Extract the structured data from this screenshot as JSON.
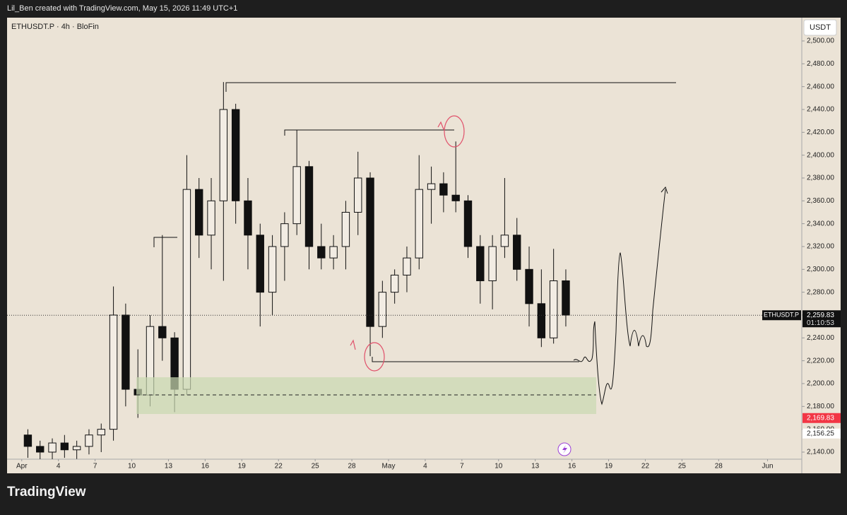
{
  "header": {
    "credit": "Lil_Ben created with TradingView.com, May 15, 2026 11:49 UTC+1"
  },
  "footer": {
    "brand": "TradingView"
  },
  "chart_data": {
    "type": "candlestick",
    "title": "ETHUSDT.P · 4h · BloFin",
    "currency": "USDT",
    "x": [
      0.5,
      1.5,
      2.5,
      3.5,
      4.5,
      5.5,
      6.5,
      7.5,
      8.5,
      9.5,
      10.5,
      11.5,
      12.5,
      13.5,
      14.5,
      15.5,
      16.5,
      17.5,
      18.5,
      19.5,
      20.5,
      21.5,
      22.5,
      23.5,
      24.5,
      25.5,
      26.5,
      27.5,
      28.5,
      29.5,
      30.5,
      31.5,
      32.5,
      33.5,
      34.5,
      35.5,
      36.5,
      37.5,
      38.5,
      39.5,
      40.5,
      41.5,
      42.5,
      43.5,
      44.5
    ],
    "open": [
      2155,
      2145,
      2140,
      2148,
      2142,
      2145,
      2155,
      2160,
      2260,
      2195,
      2190,
      2250,
      2240,
      2195,
      2370,
      2330,
      2360,
      2440,
      2360,
      2330,
      2280,
      2320,
      2340,
      2390,
      2320,
      2310,
      2320,
      2350,
      2380,
      2250,
      2280,
      2295,
      2310,
      2370,
      2375,
      2365,
      2360,
      2320,
      2290,
      2320,
      2330,
      2300,
      2270,
      2240,
      2290
    ],
    "high": [
      2160,
      2150,
      2152,
      2155,
      2150,
      2160,
      2165,
      2285,
      2270,
      2230,
      2260,
      2330,
      2245,
      2400,
      2380,
      2380,
      2464,
      2445,
      2380,
      2340,
      2330,
      2350,
      2422,
      2395,
      2340,
      2330,
      2360,
      2403,
      2385,
      2290,
      2300,
      2320,
      2400,
      2390,
      2385,
      2412,
      2365,
      2330,
      2330,
      2380,
      2345,
      2320,
      2300,
      2318,
      2300
    ],
    "low": [
      2135,
      2130,
      2132,
      2135,
      2134,
      2138,
      2140,
      2150,
      2180,
      2170,
      2180,
      2220,
      2175,
      2190,
      2310,
      2300,
      2290,
      2340,
      2300,
      2250,
      2260,
      2290,
      2330,
      2300,
      2300,
      2300,
      2300,
      2330,
      2224,
      2240,
      2270,
      2280,
      2300,
      2340,
      2350,
      2350,
      2310,
      2270,
      2265,
      2310,
      2290,
      2250,
      2232,
      2235,
      2250
    ],
    "close": [
      2145,
      2140,
      2148,
      2142,
      2145,
      2155,
      2160,
      2260,
      2195,
      2190,
      2250,
      2240,
      2195,
      2370,
      2330,
      2360,
      2440,
      2360,
      2330,
      2280,
      2320,
      2340,
      2390,
      2320,
      2310,
      2320,
      2350,
      2380,
      2250,
      2280,
      2295,
      2310,
      2370,
      2375,
      2365,
      2360,
      2320,
      2290,
      2320,
      2330,
      2300,
      2270,
      2240,
      2290,
      2260
    ],
    "up_color": "#f2ece3",
    "down_color": "#111111",
    "wick_color": "#111111",
    "xlim": [
      -1.2,
      63.8
    ],
    "xticks": [
      {
        "value": 0,
        "label": "Apr"
      },
      {
        "value": 3,
        "label": "4"
      },
      {
        "value": 6,
        "label": "7"
      },
      {
        "value": 9,
        "label": "10"
      },
      {
        "value": 12,
        "label": "13"
      },
      {
        "value": 15,
        "label": "16"
      },
      {
        "value": 18,
        "label": "19"
      },
      {
        "value": 21,
        "label": "22"
      },
      {
        "value": 24,
        "label": "25"
      },
      {
        "value": 27,
        "label": "28"
      },
      {
        "value": 30,
        "label": "May"
      },
      {
        "value": 33,
        "label": "4"
      },
      {
        "value": 36,
        "label": "7"
      },
      {
        "value": 39,
        "label": "10"
      },
      {
        "value": 42,
        "label": "13"
      },
      {
        "value": 45,
        "label": "16"
      },
      {
        "value": 48,
        "label": "19"
      },
      {
        "value": 51,
        "label": "22"
      },
      {
        "value": 54,
        "label": "25"
      },
      {
        "value": 57,
        "label": "28"
      },
      {
        "value": 61,
        "label": "Jun"
      }
    ],
    "ylim": [
      2133.8,
      2520.4
    ],
    "yticks": [
      {
        "value": 2140,
        "label": "2,140.00"
      },
      {
        "value": 2160,
        "label": "2,160.00"
      },
      {
        "value": 2180,
        "label": "2,180.00"
      },
      {
        "value": 2200,
        "label": "2,200.00"
      },
      {
        "value": 2220,
        "label": "2,220.00"
      },
      {
        "value": 2240,
        "label": "2,240.00"
      },
      {
        "value": 2260,
        "label": "2,260.00"
      },
      {
        "value": 2280,
        "label": "2,280.00"
      },
      {
        "value": 2300,
        "label": "2,300.00"
      },
      {
        "value": 2320,
        "label": "2,320.00"
      },
      {
        "value": 2340,
        "label": "2,340.00"
      },
      {
        "value": 2360,
        "label": "2,360.00"
      },
      {
        "value": 2380,
        "label": "2,380.00"
      },
      {
        "value": 2400,
        "label": "2,400.00"
      },
      {
        "value": 2420,
        "label": "2,420.00"
      },
      {
        "value": 2440,
        "label": "2,440.00"
      },
      {
        "value": 2460,
        "label": "2,460.00"
      },
      {
        "value": 2480,
        "label": "2,480.00"
      },
      {
        "value": 2500,
        "label": "2,500.00"
      }
    ],
    "last_price": {
      "name": "ETHUSDT.P",
      "value": 2259.83,
      "label": "2,259.83",
      "countdown": "01:10:53"
    },
    "price_tags": [
      {
        "value": 2169.83,
        "label": "2,169.83",
        "color": "#f23645"
      },
      {
        "value": 2156.25,
        "label": "2,156.25",
        "color": "#ffffff"
      }
    ]
  }
}
